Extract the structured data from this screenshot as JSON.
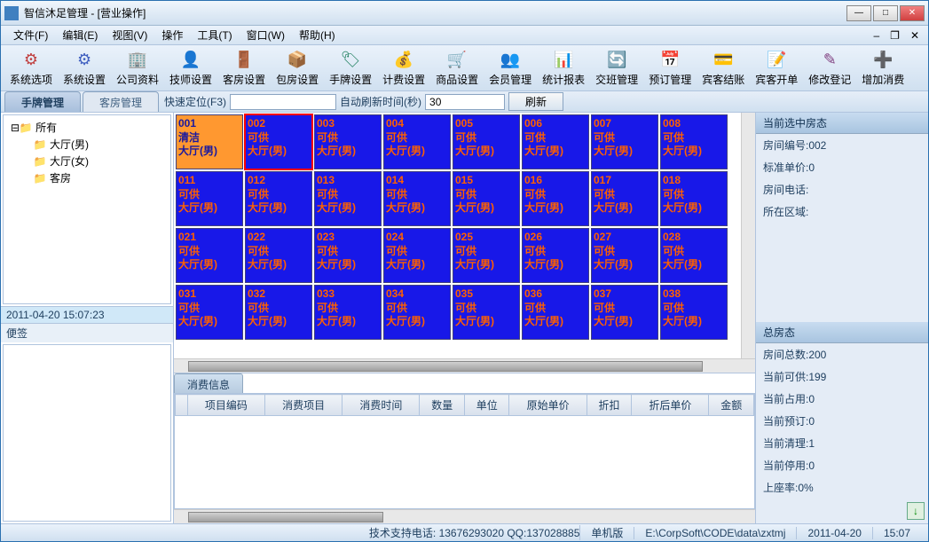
{
  "title": "智信沐足管理 - [营业操作]",
  "menu": [
    "文件(F)",
    "编辑(E)",
    "视图(V)",
    "操作",
    "工具(T)",
    "窗口(W)",
    "帮助(H)"
  ],
  "toolbar": [
    {
      "icon": "⚙",
      "color": "#c04040",
      "label": "系统选项"
    },
    {
      "icon": "⚙",
      "color": "#4060c0",
      "label": "系统设置"
    },
    {
      "icon": "🏢",
      "color": "#c08020",
      "label": "公司资料"
    },
    {
      "icon": "👤",
      "color": "#2080c0",
      "label": "技师设置"
    },
    {
      "icon": "🚪",
      "color": "#c06020",
      "label": "客房设置"
    },
    {
      "icon": "📦",
      "color": "#8040a0",
      "label": "包房设置"
    },
    {
      "icon": "🏷",
      "color": "#208060",
      "label": "手牌设置"
    },
    {
      "icon": "💰",
      "color": "#c0a020",
      "label": "计费设置"
    },
    {
      "icon": "🛒",
      "color": "#2060c0",
      "label": "商品设置"
    },
    {
      "icon": "👥",
      "color": "#c04080",
      "label": "会员管理"
    },
    {
      "icon": "📊",
      "color": "#40a040",
      "label": "统计报表"
    },
    {
      "icon": "🔄",
      "color": "#a04040",
      "label": "交班管理"
    },
    {
      "icon": "📅",
      "color": "#4040c0",
      "label": "预订管理"
    },
    {
      "icon": "💳",
      "color": "#c06040",
      "label": "宾客结账"
    },
    {
      "icon": "📝",
      "color": "#2080a0",
      "label": "宾客开单"
    },
    {
      "icon": "✎",
      "color": "#804080",
      "label": "修改登记"
    },
    {
      "icon": "➕",
      "color": "#40a060",
      "label": "增加消费"
    }
  ],
  "leftTabs": {
    "active": "手牌管理",
    "inactive": "客房管理"
  },
  "filter": {
    "quick_label": "快速定位(F3)",
    "auto_label": "自动刷新时间(秒)",
    "auto_value": "30",
    "refresh": "刷新"
  },
  "tree": {
    "root": "所有",
    "children": [
      "大厅(男)",
      "大厅(女)",
      "客房"
    ]
  },
  "timestamp": "2011-04-20 15:07:23",
  "memo_label": "便签",
  "rooms": [
    {
      "n": "001",
      "s": "清洁",
      "l": "大厅(男)",
      "t": "orange"
    },
    {
      "n": "002",
      "s": "可供",
      "l": "大厅(男)",
      "t": "blue",
      "sel": true
    },
    {
      "n": "003",
      "s": "可供",
      "l": "大厅(男)",
      "t": "blue"
    },
    {
      "n": "004",
      "s": "可供",
      "l": "大厅(男)",
      "t": "blue"
    },
    {
      "n": "005",
      "s": "可供",
      "l": "大厅(男)",
      "t": "blue"
    },
    {
      "n": "006",
      "s": "可供",
      "l": "大厅(男)",
      "t": "blue"
    },
    {
      "n": "007",
      "s": "可供",
      "l": "大厅(男)",
      "t": "blue"
    },
    {
      "n": "008",
      "s": "可供",
      "l": "大厅(男)",
      "t": "blue"
    },
    {
      "n": "011",
      "s": "可供",
      "l": "大厅(男)",
      "t": "blue"
    },
    {
      "n": "012",
      "s": "可供",
      "l": "大厅(男)",
      "t": "blue"
    },
    {
      "n": "013",
      "s": "可供",
      "l": "大厅(男)",
      "t": "blue"
    },
    {
      "n": "014",
      "s": "可供",
      "l": "大厅(男)",
      "t": "blue"
    },
    {
      "n": "015",
      "s": "可供",
      "l": "大厅(男)",
      "t": "blue"
    },
    {
      "n": "016",
      "s": "可供",
      "l": "大厅(男)",
      "t": "blue"
    },
    {
      "n": "017",
      "s": "可供",
      "l": "大厅(男)",
      "t": "blue"
    },
    {
      "n": "018",
      "s": "可供",
      "l": "大厅(男)",
      "t": "blue"
    },
    {
      "n": "021",
      "s": "可供",
      "l": "大厅(男)",
      "t": "blue"
    },
    {
      "n": "022",
      "s": "可供",
      "l": "大厅(男)",
      "t": "blue"
    },
    {
      "n": "023",
      "s": "可供",
      "l": "大厅(男)",
      "t": "blue"
    },
    {
      "n": "024",
      "s": "可供",
      "l": "大厅(男)",
      "t": "blue"
    },
    {
      "n": "025",
      "s": "可供",
      "l": "大厅(男)",
      "t": "blue"
    },
    {
      "n": "026",
      "s": "可供",
      "l": "大厅(男)",
      "t": "blue"
    },
    {
      "n": "027",
      "s": "可供",
      "l": "大厅(男)",
      "t": "blue"
    },
    {
      "n": "028",
      "s": "可供",
      "l": "大厅(男)",
      "t": "blue"
    },
    {
      "n": "031",
      "s": "可供",
      "l": "大厅(男)",
      "t": "blue"
    },
    {
      "n": "032",
      "s": "可供",
      "l": "大厅(男)",
      "t": "blue"
    },
    {
      "n": "033",
      "s": "可供",
      "l": "大厅(男)",
      "t": "blue"
    },
    {
      "n": "034",
      "s": "可供",
      "l": "大厅(男)",
      "t": "blue"
    },
    {
      "n": "035",
      "s": "可供",
      "l": "大厅(男)",
      "t": "blue"
    },
    {
      "n": "036",
      "s": "可供",
      "l": "大厅(男)",
      "t": "blue"
    },
    {
      "n": "037",
      "s": "可供",
      "l": "大厅(男)",
      "t": "blue"
    },
    {
      "n": "038",
      "s": "可供",
      "l": "大厅(男)",
      "t": "blue"
    }
  ],
  "consume": {
    "tab": "消费信息",
    "cols": [
      "",
      "项目编码",
      "消费项目",
      "消费时间",
      "数量",
      "单位",
      "原始单价",
      "折扣",
      "折后单价",
      "金额"
    ]
  },
  "right": {
    "header": "当前选中房态",
    "rows": [
      {
        "k": "房间编号",
        "v": "002"
      },
      {
        "k": "标准单价",
        "v": "0"
      },
      {
        "k": "房间电话",
        "v": ""
      },
      {
        "k": "所在区域",
        "v": ""
      }
    ],
    "header2": "总房态",
    "stats": [
      {
        "k": "房间总数",
        "v": "200"
      },
      {
        "k": "当前可供",
        "v": "199"
      },
      {
        "k": "当前占用",
        "v": "0"
      },
      {
        "k": "当前预订",
        "v": "0"
      },
      {
        "k": "当前清理",
        "v": "1"
      },
      {
        "k": "当前停用",
        "v": "0"
      },
      {
        "k": "上座率",
        "v": "0%"
      }
    ]
  },
  "status": {
    "support": "技术支持电话: 13676293020 QQ:137028885",
    "mode": "单机版",
    "path": "E:\\CorpSoft\\CODE\\data\\zxtmj",
    "date": "2011-04-20",
    "time": "15:07"
  }
}
